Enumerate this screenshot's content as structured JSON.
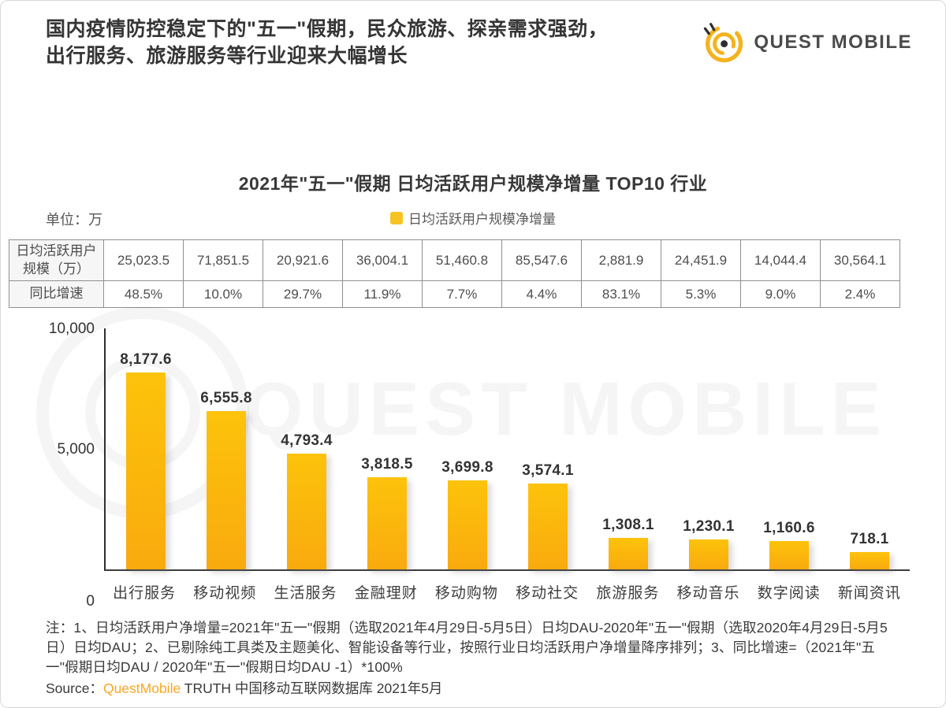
{
  "header": {
    "line1": "国内疫情防控稳定下的\"五一\"假期，民众旅游、探亲需求强劲，",
    "line2": "出行服务、旅游服务等行业迎来大幅增长",
    "logo_text": "QUEST MOBILE"
  },
  "chart_data": {
    "type": "bar",
    "title": "2021年\"五一\"假期 日均活跃用户规模净增量 TOP10 行业",
    "unit_label": "单位：万",
    "legend": "日均活跃用户规模净增量",
    "legend_position": "top-center",
    "categories": [
      "出行服务",
      "移动视频",
      "生活服务",
      "金融理财",
      "移动购物",
      "移动社交",
      "旅游服务",
      "移动音乐",
      "数字阅读",
      "新闻资讯"
    ],
    "values": [
      8177.6,
      6555.8,
      4793.4,
      3818.5,
      3699.8,
      3574.1,
      1308.1,
      1230.1,
      1160.6,
      718.1
    ],
    "value_labels": [
      "8,177.6",
      "6,555.8",
      "4,793.4",
      "3,818.5",
      "3,699.8",
      "3,574.1",
      "1,308.1",
      "1,230.1",
      "1,160.6",
      "718.1"
    ],
    "ylabel": "",
    "xlabel": "",
    "ylim": [
      0,
      10000
    ],
    "yticks": [
      "0",
      "5,000",
      "10,000"
    ],
    "grid": false,
    "bar_color": "#FBB90A"
  },
  "table": {
    "rows": [
      {
        "label": "日均活跃用户规模（万）",
        "values": [
          "25,023.5",
          "71,851.5",
          "20,921.6",
          "36,004.1",
          "51,460.8",
          "85,547.6",
          "2,881.9",
          "24,451.9",
          "14,044.4",
          "30,564.1"
        ],
        "red_value_indexes": []
      },
      {
        "label": "同比增速",
        "values": [
          "48.5%",
          "10.0%",
          "29.7%",
          "11.9%",
          "7.7%",
          "4.4%",
          "83.1%",
          "5.3%",
          "9.0%",
          "2.4%"
        ],
        "red_value_indexes": [
          0,
          6
        ]
      }
    ],
    "red_color": "#F2595B"
  },
  "notes": {
    "text": "注：1、日均活跃用户净增量=2021年\"五一\"假期（选取2021年4月29日-5月5日）日均DAU-2020年\"五一\"假期（选取2020年4月29日-5月5日）日均DAU；2、已剔除纯工具类及主题美化、智能设备等行业，按照行业日均活跃用户净增量降序排列；3、同比增速=（2021年\"五一\"假期日均DAU / 2020年\"五一\"假期日均DAU -1）*100%"
  },
  "source": {
    "prefix": "Source：",
    "brand": "QuestMobile",
    "suffix": " TRUTH 中国移动互联网数据库 2021年5月"
  },
  "watermark": {
    "text": "QUEST MOBILE"
  }
}
